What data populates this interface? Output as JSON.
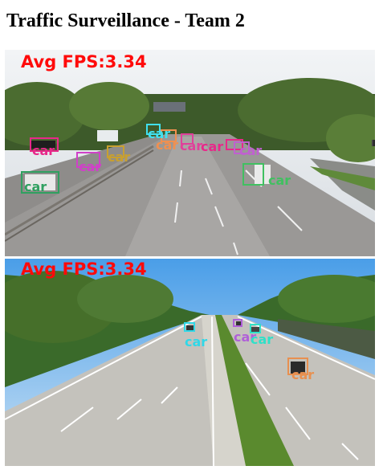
{
  "page": {
    "title": "Traffic Surveillance - Team 2"
  },
  "feeds": [
    {
      "fps_text": "Avg FPS:3.34",
      "detections": [
        {
          "label": "car",
          "color": "#e8288a"
        },
        {
          "label": "car",
          "color": "#d040c8"
        },
        {
          "label": "car",
          "color": "#c8a030"
        },
        {
          "label": "car",
          "color": "#40e0f0"
        },
        {
          "label": "car",
          "color": "#f09050"
        },
        {
          "label": "car",
          "color": "#e0409a"
        },
        {
          "label": "car",
          "color": "#e8288a"
        },
        {
          "label": "car",
          "color": "#c060d0"
        },
        {
          "label": "car",
          "color": "#40c060"
        },
        {
          "label": "car",
          "color": "#30a060"
        }
      ]
    },
    {
      "fps_text": "Avg FPS:3.34",
      "detections": [
        {
          "label": "car",
          "color": "#30d8e8"
        },
        {
          "label": "car",
          "color": "#b060d8"
        },
        {
          "label": "car",
          "color": "#30e0c8"
        },
        {
          "label": "car",
          "color": "#e89050"
        }
      ]
    }
  ]
}
